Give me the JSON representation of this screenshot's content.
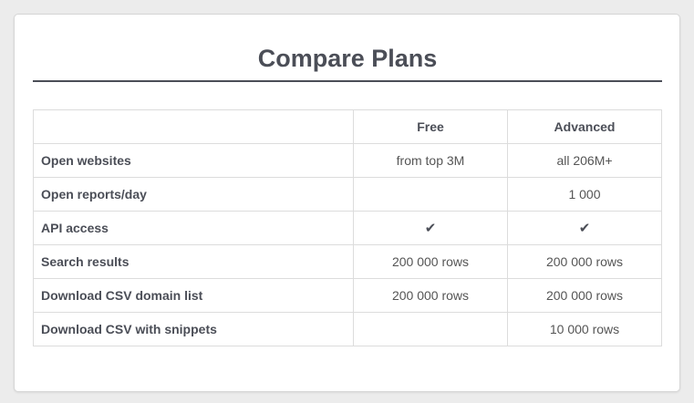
{
  "title": "Compare Plans",
  "columns": [
    "",
    "Free",
    "Advanced"
  ],
  "rows": [
    {
      "feature": "Open websites",
      "free": "from top 3M",
      "advanced": "all 206M+"
    },
    {
      "feature": "Open reports/day",
      "free": "",
      "advanced": "1 000"
    },
    {
      "feature": "API access",
      "free": "✔",
      "advanced": "✔"
    },
    {
      "feature": "Search results",
      "free": "200 000 rows",
      "advanced": "200 000 rows"
    },
    {
      "feature": "Download CSV domain list",
      "free": "200 000 rows",
      "advanced": "200 000 rows"
    },
    {
      "feature": "Download CSV with snippets",
      "free": "",
      "advanced": "10 000 rows"
    }
  ],
  "icons": {
    "check": "check-icon"
  }
}
